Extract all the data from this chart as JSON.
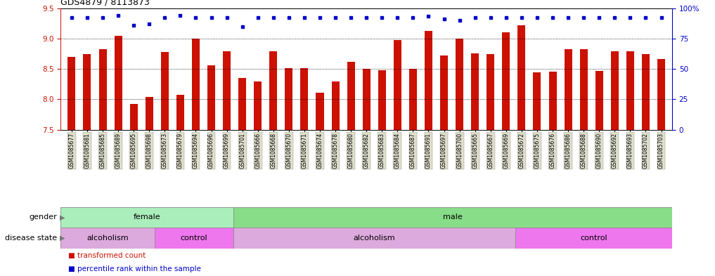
{
  "title": "GDS4879 / 8113873",
  "samples": [
    "GSM1085677",
    "GSM1085681",
    "GSM1085685",
    "GSM1085689",
    "GSM1085695",
    "GSM1085698",
    "GSM1085673",
    "GSM1085679",
    "GSM1085694",
    "GSM1085696",
    "GSM1085699",
    "GSM1085701",
    "GSM1085666",
    "GSM1085668",
    "GSM1085670",
    "GSM1085671",
    "GSM1085674",
    "GSM1085678",
    "GSM1085680",
    "GSM1085682",
    "GSM1085683",
    "GSM1085684",
    "GSM1085687",
    "GSM1085691",
    "GSM1085697",
    "GSM1085700",
    "GSM1085665",
    "GSM1085667",
    "GSM1085669",
    "GSM1085672",
    "GSM1085675",
    "GSM1085676",
    "GSM1085686",
    "GSM1085688",
    "GSM1085690",
    "GSM1085692",
    "GSM1085693",
    "GSM1085702",
    "GSM1085703"
  ],
  "bar_values": [
    8.7,
    8.74,
    8.83,
    9.05,
    7.93,
    8.04,
    8.78,
    8.08,
    9.0,
    8.56,
    8.79,
    8.35,
    8.3,
    8.79,
    8.52,
    8.52,
    8.11,
    8.3,
    8.62,
    8.5,
    8.48,
    8.98,
    8.5,
    9.13,
    8.72,
    9.0,
    8.76,
    8.75,
    9.1,
    9.22,
    8.45,
    8.46,
    8.83,
    8.83,
    8.47,
    8.79,
    8.79,
    8.74,
    8.67
  ],
  "percentile_values": [
    9.35,
    9.35,
    9.35,
    9.38,
    9.22,
    9.24,
    9.35,
    9.38,
    9.35,
    9.35,
    9.35,
    9.2,
    9.35,
    9.35,
    9.35,
    9.35,
    9.35,
    9.35,
    9.35,
    9.35,
    9.35,
    9.35,
    9.35,
    9.37,
    9.32,
    9.3,
    9.35,
    9.35,
    9.35,
    9.35,
    9.35,
    9.35,
    9.35,
    9.35,
    9.35,
    9.35,
    9.35,
    9.35,
    9.35
  ],
  "ylim": [
    7.5,
    9.5
  ],
  "yticks_left": [
    7.5,
    8.0,
    8.5,
    9.0,
    9.5
  ],
  "yticks_right": [
    0,
    25,
    50,
    75,
    100
  ],
  "yticks_right_labels": [
    "0",
    "25",
    "50",
    "75",
    "100%"
  ],
  "bar_color": "#CC1100",
  "dot_color": "#0000CC",
  "gender_female_color": "#AAEEBB",
  "gender_male_color": "#88DD88",
  "disease_alcoholism_color": "#DDAADD",
  "disease_control_color": "#EE77EE",
  "gender_regions": [
    {
      "label": "female",
      "start": 0,
      "end": 11
    },
    {
      "label": "male",
      "start": 11,
      "end": 39
    }
  ],
  "disease_regions": [
    {
      "label": "alcoholism",
      "start": 0,
      "end": 6
    },
    {
      "label": "control",
      "start": 6,
      "end": 11
    },
    {
      "label": "alcoholism",
      "start": 11,
      "end": 29
    },
    {
      "label": "control",
      "start": 29,
      "end": 39
    }
  ],
  "legend_bar_label": "transformed count",
  "legend_dot_label": "percentile rank within the sample",
  "background_color": "#FFFFFF",
  "n_samples": 39,
  "xtick_bg_color": "#DDDDCC"
}
